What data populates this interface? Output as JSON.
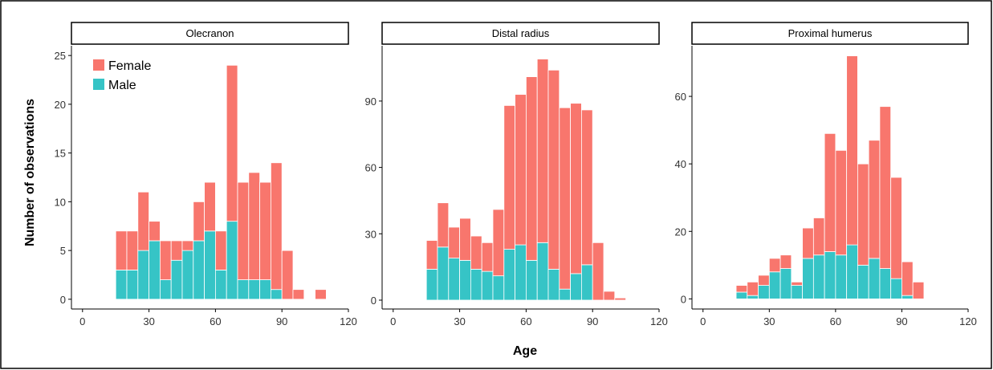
{
  "figure": {
    "ylabel": "Number of observations",
    "xlabel": "Age",
    "legend": [
      {
        "name": "Female",
        "color": "#F8766D"
      },
      {
        "name": "Male",
        "color": "#36C4C6"
      }
    ],
    "legend_position": "top-left of first panel"
  },
  "chart_data": [
    {
      "type": "bar",
      "stacked": true,
      "title": "Olecranon",
      "xlim": [
        -5,
        120
      ],
      "xticks": [
        0,
        30,
        60,
        90,
        120
      ],
      "ylim": [
        -1,
        26
      ],
      "yticks": [
        0,
        5,
        10,
        15,
        20,
        25
      ],
      "bin_width": 5,
      "x": [
        17.5,
        22.5,
        27.5,
        32.5,
        37.5,
        42.5,
        47.5,
        52.5,
        57.5,
        62.5,
        67.5,
        72.5,
        77.5,
        82.5,
        87.5,
        92.5,
        97.5,
        102.5,
        107.5
      ],
      "series": [
        {
          "name": "Male",
          "values": [
            3,
            3,
            5,
            6,
            2,
            4,
            5,
            6,
            7,
            3,
            8,
            2,
            2,
            2,
            1,
            0,
            0,
            0,
            0
          ]
        },
        {
          "name": "Female",
          "values": [
            4,
            4,
            6,
            2,
            4,
            2,
            1,
            4,
            5,
            4,
            16,
            10,
            11,
            10,
            13,
            5,
            1,
            0,
            1
          ]
        }
      ]
    },
    {
      "type": "bar",
      "stacked": true,
      "title": "Distal radius",
      "xlim": [
        -5,
        120
      ],
      "xticks": [
        0,
        30,
        60,
        90,
        120
      ],
      "ylim": [
        -4,
        115
      ],
      "yticks": [
        0,
        30,
        60,
        90
      ],
      "bin_width": 5,
      "x": [
        17.5,
        22.5,
        27.5,
        32.5,
        37.5,
        42.5,
        47.5,
        52.5,
        57.5,
        62.5,
        67.5,
        72.5,
        77.5,
        82.5,
        87.5,
        92.5,
        97.5,
        102.5
      ],
      "series": [
        {
          "name": "Male",
          "values": [
            14,
            24,
            19,
            18,
            14,
            13,
            11,
            23,
            25,
            18,
            26,
            14,
            5,
            12,
            16,
            0,
            0,
            0
          ]
        },
        {
          "name": "Female",
          "values": [
            13,
            20,
            14,
            19,
            15,
            13,
            30,
            65,
            68,
            83,
            83,
            90,
            82,
            77,
            70,
            26,
            4,
            1
          ]
        }
      ]
    },
    {
      "type": "bar",
      "stacked": true,
      "title": "Proximal humerus",
      "xlim": [
        -5,
        120
      ],
      "xticks": [
        0,
        30,
        60,
        90,
        120
      ],
      "ylim": [
        -3,
        75
      ],
      "yticks": [
        0,
        20,
        40,
        60
      ],
      "bin_width": 5,
      "x": [
        17.5,
        22.5,
        27.5,
        32.5,
        37.5,
        42.5,
        47.5,
        52.5,
        57.5,
        62.5,
        67.5,
        72.5,
        77.5,
        82.5,
        87.5,
        92.5,
        97.5
      ],
      "series": [
        {
          "name": "Male",
          "values": [
            2,
            1,
            4,
            8,
            9,
            4,
            12,
            13,
            14,
            13,
            16,
            10,
            12,
            9,
            6,
            1,
            0
          ]
        },
        {
          "name": "Female",
          "values": [
            2,
            4,
            3,
            4,
            4,
            1,
            9,
            11,
            35,
            31,
            56,
            30,
            35,
            48,
            30,
            10,
            5
          ]
        }
      ]
    }
  ]
}
